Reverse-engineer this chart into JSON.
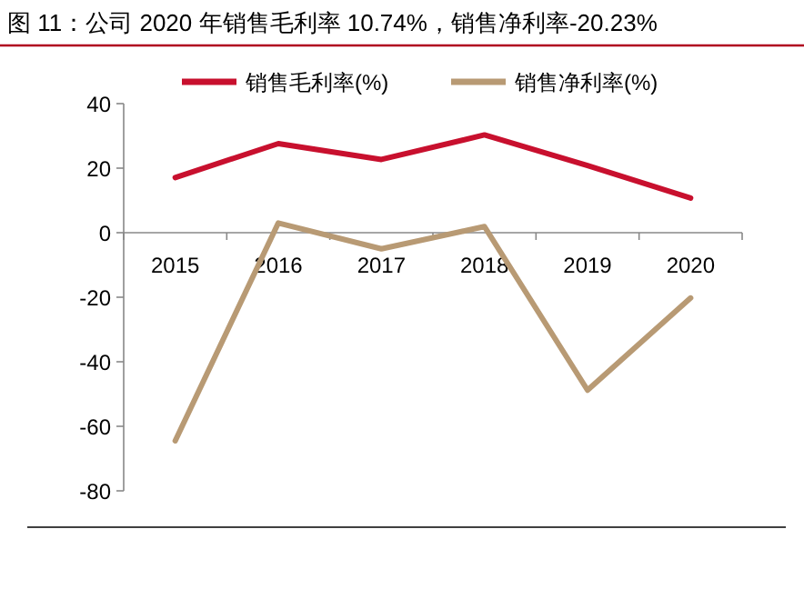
{
  "chart_data": {
    "type": "line",
    "title": "图 11：公司 2020 年销售毛利率 10.74%，销售净利率-20.23%",
    "categories": [
      "2015",
      "2016",
      "2017",
      "2018",
      "2019",
      "2020"
    ],
    "series": [
      {
        "name": "销售毛利率(%)",
        "color": "#c8102e",
        "values": [
          17.1,
          27.6,
          22.7,
          30.3,
          20.8,
          10.74
        ]
      },
      {
        "name": "销售净利率(%)",
        "color": "#b89a74",
        "values": [
          -64.5,
          3.0,
          -5.0,
          1.9,
          -48.8,
          -20.23
        ]
      }
    ],
    "ylim": [
      -80,
      40
    ],
    "yticks": [
      -80,
      -60,
      -40,
      -20,
      0,
      20,
      40
    ],
    "legend": "top",
    "grid": false,
    "marker": "none",
    "line_style": "solid"
  }
}
